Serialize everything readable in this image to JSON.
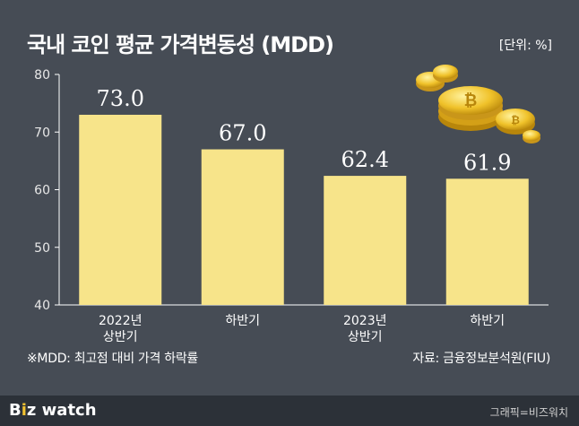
{
  "header": {
    "title": "국내 코인 평균 가격변동성 (MDD)",
    "unit": "[단위: %]"
  },
  "chart_data": {
    "type": "bar",
    "categories": [
      [
        "2022년",
        "상반기"
      ],
      [
        "하반기"
      ],
      [
        "2023년",
        "상반기"
      ],
      [
        "하반기"
      ]
    ],
    "values": [
      73.0,
      67.0,
      62.4,
      61.9
    ],
    "value_labels": [
      "73.0",
      "67.0",
      "62.4",
      "61.9"
    ],
    "y_ticks": [
      "80",
      "70",
      "60",
      "50",
      "40"
    ],
    "ylim": [
      40,
      80
    ],
    "grid": false,
    "bar_color": "#f7e48a",
    "axis_color": "#ffffff"
  },
  "footnote": {
    "note": "※MDD: 최고점 대비 가격 하락률",
    "source": "자료: 금융정보분석원(FIU)"
  },
  "footer": {
    "brand_b": "B",
    "brand_i": "i",
    "brand_z": "z",
    "brand_watch": "watch",
    "credit": "그래픽=비즈워치"
  },
  "decoration": {
    "icon": "bitcoin-coins-icon"
  }
}
